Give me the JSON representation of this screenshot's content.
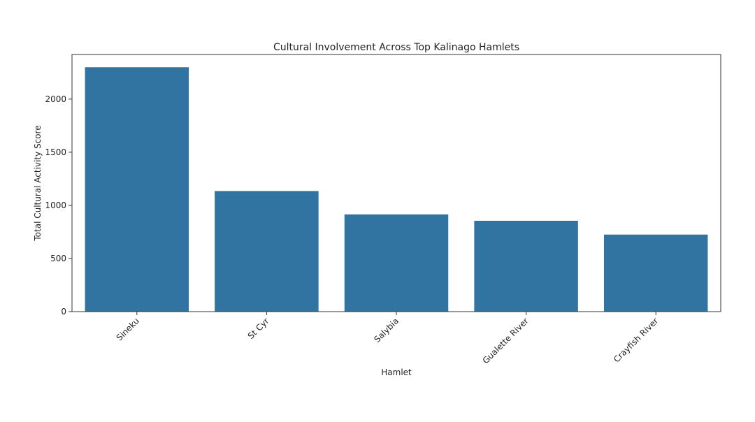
{
  "chart_data": {
    "type": "bar",
    "title": "Cultural Involvement Across Top Kalinago Hamlets",
    "xlabel": "Hamlet",
    "ylabel": "Total Cultural Activity Score",
    "categories": [
      "Sineku",
      "St Cyr",
      "Salybia",
      "Gualette River",
      "Crayfish River"
    ],
    "values": [
      2300,
      1135,
      915,
      855,
      725
    ],
    "ylim": [
      0,
      2420
    ],
    "yticks": [
      0,
      500,
      1000,
      1500,
      2000
    ],
    "grid": false,
    "legend": "none",
    "bar_color": "#3274a1",
    "x_tick_rotation_deg": -45
  }
}
